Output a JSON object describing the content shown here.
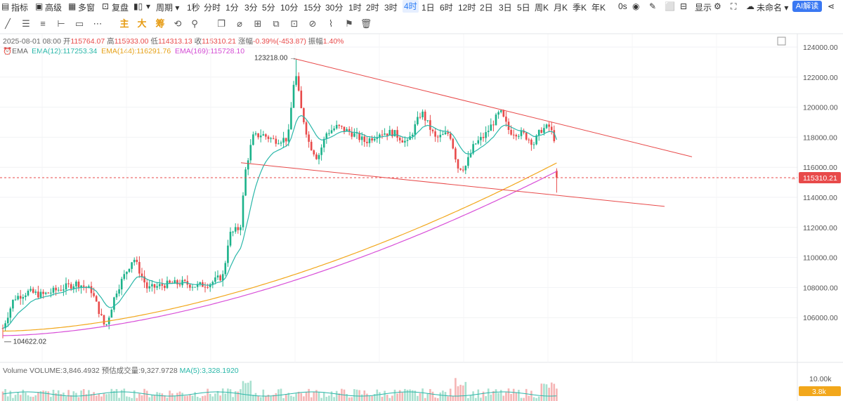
{
  "toolbar": {
    "left": [
      {
        "name": "indicators",
        "label": "指标",
        "icon": "indicator-icon"
      },
      {
        "name": "pro",
        "label": "高级",
        "icon": "advanced-icon"
      },
      {
        "name": "multi-window",
        "label": "多窗",
        "icon": "window-icon"
      },
      {
        "name": "replay",
        "label": "复盘",
        "icon": "replay-icon"
      },
      {
        "name": "chart-type",
        "label": "",
        "icon": "candles-icon"
      }
    ],
    "period_label": "周期",
    "timeframes": [
      "1秒",
      "分时",
      "1分",
      "3分",
      "5分",
      "10分",
      "15分",
      "30分",
      "1时",
      "2时",
      "3时",
      "4时",
      "1日",
      "6时",
      "12时",
      "2日",
      "3日",
      "5日",
      "周K",
      "月K",
      "季K",
      "年K"
    ],
    "selected_timeframe": "4时",
    "seconds_label": "0s",
    "display_label": "显示",
    "unnamed_label": "未命名",
    "ai_label": "AI解读"
  },
  "drawing_tools": [
    {
      "name": "line-tool-icon",
      "glyph": "╱"
    },
    {
      "name": "parallel-lines-icon",
      "glyph": "☰"
    },
    {
      "name": "channel-icon",
      "glyph": "≡"
    },
    {
      "name": "horizontal-line-icon",
      "glyph": "⊢"
    },
    {
      "name": "rectangle-icon",
      "glyph": "▭"
    },
    {
      "name": "more-tools-icon",
      "glyph": "⋯"
    }
  ],
  "text_tools": [
    "主",
    "大",
    "筹"
  ],
  "info_line": {
    "date": "2025-08-01 08:00",
    "open_label": "开",
    "open": "115764.07",
    "high_label": "高",
    "high": "115933.00",
    "low_label": "低",
    "low": "114313.13",
    "close_label": "收",
    "close": "115310.21",
    "change_label": "涨幅",
    "change": "-0.39%(-453.87)",
    "amplitude_label": "振幅",
    "amplitude": "1.40%"
  },
  "ema_line": {
    "label": "EMA",
    "ema12": "EMA(12):117253.34",
    "ema144": "EMA(144):116291.76",
    "ema169": "EMA(169):115728.10"
  },
  "volume_line": {
    "label": "Volume",
    "volume": "VOLUME:3,846.4932",
    "estimate": "预估成交量:9,327.9728",
    "ma5": "MA(5):3,328.1920"
  },
  "colors": {
    "up": "#1bb28a",
    "down": "#e84a4a",
    "ema12": "#2ab7a9",
    "ema144": "#f2a71b",
    "ema169": "#d84fd8",
    "trendline": "#e84a4a",
    "accent": "#2a7cf6",
    "price_tag": "#e84a4a",
    "volume_tag": "#f2a71b"
  },
  "chart_data": {
    "type": "candlestick",
    "title": "",
    "y_axis": {
      "ticks": [
        "124000.00",
        "122000.00",
        "120000.00",
        "118000.00",
        "116000.00",
        "114000.00",
        "112000.00",
        "110000.00",
        "108000.00",
        "106000.00"
      ],
      "range": [
        104300,
        124700
      ]
    },
    "current_price": "115310.21",
    "high_annotation": "123218.00",
    "low_annotation": "104622.02",
    "volume_axis": {
      "tick": "10.00k",
      "current": "3.8k"
    },
    "trendlines": [
      {
        "name": "upper-trendline",
        "from_price": 123218,
        "to_price": 116700
      },
      {
        "name": "lower-trendline",
        "from_price": 116300,
        "to_price": 113400
      }
    ]
  }
}
